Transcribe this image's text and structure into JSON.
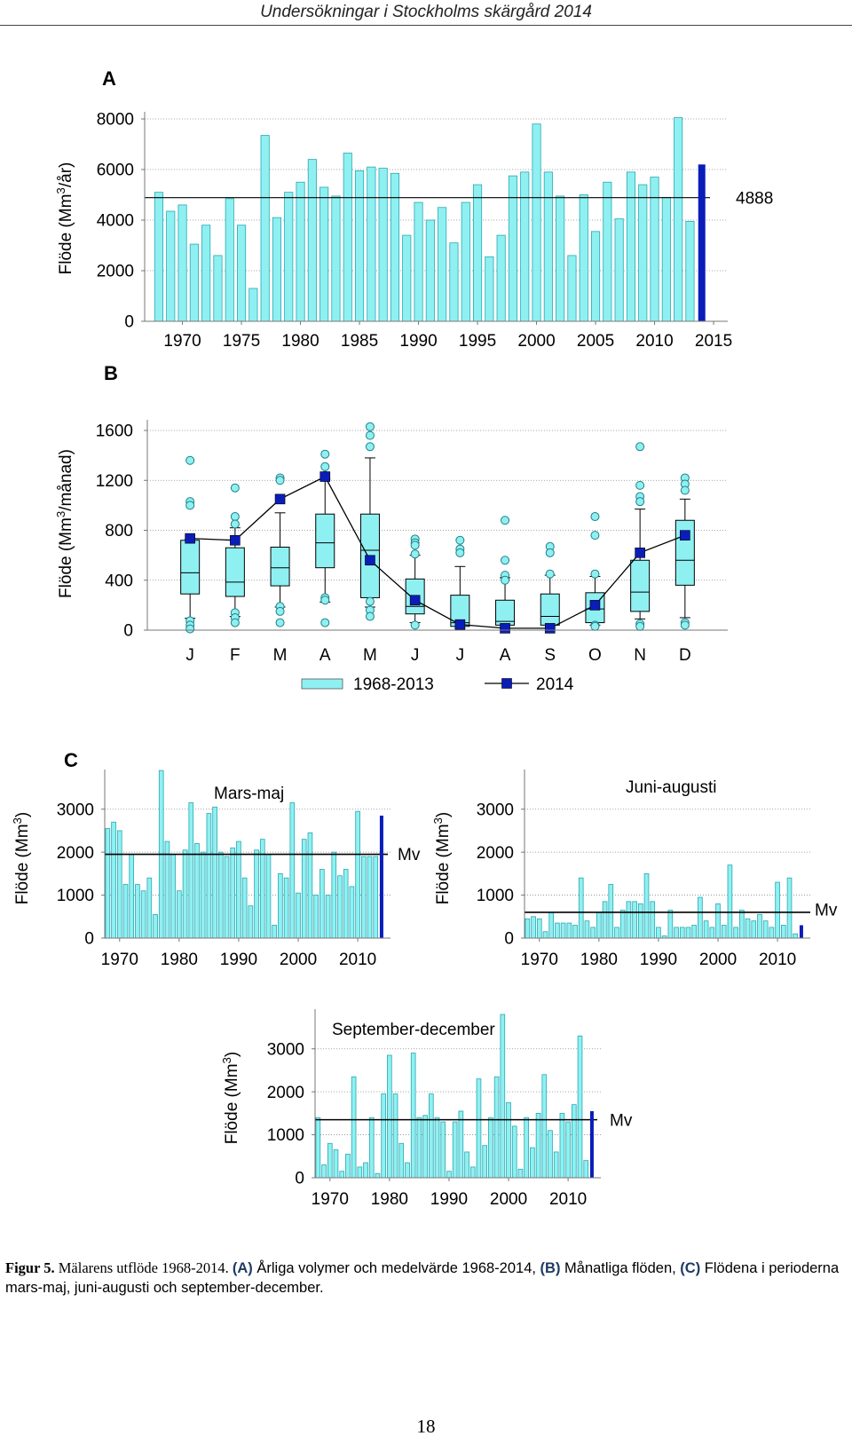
{
  "header": {
    "title": "Undersökningar i Stockholms skärgård 2014"
  },
  "colors": {
    "bar": "#8ff0f2",
    "bar_stroke": "#2aa8b0",
    "highlight": "#0a1db8",
    "mean_line": "#000000",
    "grid": "#8a8a8a"
  },
  "panels": {
    "a": "A",
    "b": "B",
    "c": "C"
  },
  "caption": {
    "figure_label": "Figur 5.",
    "figure_text": " Mälarens utflöde 1968-2014. ",
    "a_label": "(A)",
    "a_text": " Årliga volymer och medelvärde 1968-2014, ",
    "b_label": "(B)",
    "b_text": " Månatliga flöden, ",
    "c_label": "(C)",
    "c_text": " Flödena i perioderna mars-maj, juni-augusti och september-december."
  },
  "page_number": "18",
  "chart_data": [
    {
      "id": "A",
      "type": "bar",
      "ylabel_main": "Flöde (Mm",
      "ylabel_sup": "3",
      "ylabel_tail": "/år)",
      "ylim": [
        0,
        8000
      ],
      "yticks": [
        0,
        2000,
        4000,
        6000,
        8000
      ],
      "xlim": [
        1966.8,
        2016.2
      ],
      "xticks": [
        1970,
        1975,
        1980,
        1985,
        1990,
        1995,
        2000,
        2005,
        2010,
        2015
      ],
      "years": [
        1968,
        1969,
        1970,
        1971,
        1972,
        1973,
        1974,
        1975,
        1976,
        1977,
        1978,
        1979,
        1980,
        1981,
        1982,
        1983,
        1984,
        1985,
        1986,
        1987,
        1988,
        1989,
        1990,
        1991,
        1992,
        1993,
        1994,
        1995,
        1996,
        1997,
        1998,
        1999,
        2000,
        2001,
        2002,
        2003,
        2004,
        2005,
        2006,
        2007,
        2008,
        2009,
        2010,
        2011,
        2012,
        2013
      ],
      "values": [
        5100,
        4350,
        4600,
        3050,
        3800,
        2600,
        4850,
        3800,
        1300,
        7350,
        4100,
        5100,
        5500,
        6400,
        5300,
        4950,
        6650,
        5950,
        6100,
        6050,
        5850,
        3400,
        4700,
        4000,
        4500,
        3100,
        4700,
        5400,
        2550,
        3400,
        5750,
        5900,
        7800,
        5900,
        4950,
        2600,
        5000,
        3550,
        5500,
        4050,
        5900,
        5400,
        5700,
        4900,
        8050,
        3950
      ],
      "highlight_year": 2014,
      "highlight_value": 6200,
      "mean": 4888,
      "mean_label": "4888"
    },
    {
      "id": "B",
      "type": "box",
      "ylabel_main": "Flöde (Mm",
      "ylabel_sup": "3",
      "ylabel_tail": "/månad)",
      "ylim": [
        0,
        1600
      ],
      "yticks": [
        0,
        400,
        800,
        1200,
        1600
      ],
      "months": [
        "J",
        "F",
        "M",
        "A",
        "M",
        "J",
        "J",
        "A",
        "S",
        "O",
        "N",
        "D"
      ],
      "boxes": [
        {
          "wlo": 95,
          "q1": 290,
          "med": 460,
          "q3": 720,
          "whi": 730,
          "out": [
            1360,
            1030,
            1000,
            75,
            40,
            10
          ]
        },
        {
          "wlo": 110,
          "q1": 270,
          "med": 385,
          "q3": 660,
          "whi": 820,
          "out": [
            1140,
            910,
            850,
            140,
            100,
            60
          ]
        },
        {
          "wlo": 185,
          "q1": 355,
          "med": 500,
          "q3": 665,
          "whi": 940,
          "out": [
            1220,
            1200,
            190,
            150,
            60
          ]
        },
        {
          "wlo": 225,
          "q1": 500,
          "med": 700,
          "q3": 930,
          "whi": 1210,
          "out": [
            1410,
            1310,
            1240,
            260,
            240,
            60
          ]
        },
        {
          "wlo": 185,
          "q1": 260,
          "med": 640,
          "q3": 930,
          "whi": 1380,
          "out": [
            1630,
            1560,
            1470,
            230,
            160,
            110
          ]
        },
        {
          "wlo": 60,
          "q1": 130,
          "med": 190,
          "q3": 410,
          "whi": 600,
          "out": [
            730,
            700,
            680,
            610,
            40
          ]
        },
        {
          "wlo": 15,
          "q1": 30,
          "med": 60,
          "q3": 280,
          "whi": 510,
          "out": [
            720,
            650,
            620
          ]
        },
        {
          "wlo": 15,
          "q1": 40,
          "med": 70,
          "q3": 240,
          "whi": 420,
          "out": [
            880,
            560,
            440,
            400
          ]
        },
        {
          "wlo": 15,
          "q1": 40,
          "med": 110,
          "q3": 290,
          "whi": 440,
          "out": [
            670,
            620,
            450
          ]
        },
        {
          "wlo": 40,
          "q1": 60,
          "med": 170,
          "q3": 300,
          "whi": 430,
          "out": [
            910,
            760,
            450,
            40,
            30
          ]
        },
        {
          "wlo": 90,
          "q1": 150,
          "med": 305,
          "q3": 560,
          "whi": 970,
          "out": [
            1470,
            1160,
            1070,
            1030,
            50,
            30
          ]
        },
        {
          "wlo": 100,
          "q1": 360,
          "med": 560,
          "q3": 880,
          "whi": 1050,
          "out": [
            1220,
            1170,
            1120,
            60,
            40
          ]
        }
      ],
      "line_2014": [
        735,
        720,
        1050,
        1230,
        560,
        240,
        45,
        15,
        15,
        200,
        620,
        760
      ],
      "legend": [
        "1968-2013",
        "2014"
      ]
    },
    {
      "id": "C1",
      "type": "bar",
      "title": "Mars-maj",
      "ylabel_main": "Flöde (Mm",
      "ylabel_sup": "3",
      "ylabel_tail": ")",
      "ylim": [
        0,
        3800
      ],
      "yticks": [
        0,
        1000,
        2000,
        3000
      ],
      "xlim": [
        1967.5,
        2015.5
      ],
      "xticks": [
        1970,
        1980,
        1990,
        2000,
        2010
      ],
      "years": [
        1968,
        1969,
        1970,
        1971,
        1972,
        1973,
        1974,
        1975,
        1976,
        1977,
        1978,
        1979,
        1980,
        1981,
        1982,
        1983,
        1984,
        1985,
        1986,
        1987,
        1988,
        1989,
        1990,
        1991,
        1992,
        1993,
        1994,
        1995,
        1996,
        1997,
        1998,
        1999,
        2000,
        2001,
        2002,
        2003,
        2004,
        2005,
        2006,
        2007,
        2008,
        2009,
        2010,
        2011,
        2012,
        2013
      ],
      "values": [
        2550,
        2700,
        2500,
        1250,
        1950,
        1250,
        1100,
        1400,
        550,
        3900,
        2250,
        1950,
        1100,
        2050,
        3150,
        2200,
        2000,
        2900,
        3050,
        2000,
        1900,
        2100,
        2250,
        1400,
        750,
        2050,
        2300,
        1950,
        300,
        1500,
        1400,
        3150,
        1050,
        2300,
        2450,
        1000,
        1600,
        1000,
        2000,
        1450,
        1600,
        1200,
        2950,
        1900,
        1900,
        1900
      ],
      "highlight_year": 2014,
      "highlight_value": 2850,
      "mean": 1950,
      "mean_label": "Mv"
    },
    {
      "id": "C2",
      "type": "bar",
      "title": "Juni-augusti",
      "ylabel_main": "Flöde (Mm",
      "ylabel_sup": "3",
      "ylabel_tail": ")",
      "ylim": [
        0,
        3800
      ],
      "yticks": [
        0,
        1000,
        2000,
        3000
      ],
      "xlim": [
        1967.5,
        2015.5
      ],
      "xticks": [
        1970,
        1980,
        1990,
        2000,
        2010
      ],
      "years": [
        1968,
        1969,
        1970,
        1971,
        1972,
        1973,
        1974,
        1975,
        1976,
        1977,
        1978,
        1979,
        1980,
        1981,
        1982,
        1983,
        1984,
        1985,
        1986,
        1987,
        1988,
        1989,
        1990,
        1991,
        1992,
        1993,
        1994,
        1995,
        1996,
        1997,
        1998,
        1999,
        2000,
        2001,
        2002,
        2003,
        2004,
        2005,
        2006,
        2007,
        2008,
        2009,
        2010,
        2011,
        2012,
        2013
      ],
      "values": [
        450,
        500,
        450,
        150,
        600,
        350,
        350,
        350,
        300,
        1400,
        400,
        250,
        600,
        850,
        1250,
        250,
        650,
        850,
        850,
        800,
        1500,
        850,
        250,
        50,
        650,
        250,
        250,
        250,
        300,
        950,
        400,
        250,
        800,
        300,
        1700,
        250,
        650,
        450,
        400,
        550,
        400,
        250,
        1300,
        300,
        1400,
        100
      ],
      "highlight_year": 2014,
      "highlight_value": 300,
      "mean": 600,
      "mean_label": "Mv"
    },
    {
      "id": "C3",
      "type": "bar",
      "title": "September-december",
      "ylabel_main": "Flöde (Mm",
      "ylabel_sup": "3",
      "ylabel_tail": ")",
      "ylim": [
        0,
        3800
      ],
      "yticks": [
        0,
        1000,
        2000,
        3000
      ],
      "xlim": [
        1967.5,
        2015.5
      ],
      "xticks": [
        1970,
        1980,
        1990,
        2000,
        2010
      ],
      "years": [
        1968,
        1969,
        1970,
        1971,
        1972,
        1973,
        1974,
        1975,
        1976,
        1977,
        1978,
        1979,
        1980,
        1981,
        1982,
        1983,
        1984,
        1985,
        1986,
        1987,
        1988,
        1989,
        1990,
        1991,
        1992,
        1993,
        1994,
        1995,
        1996,
        1997,
        1998,
        1999,
        2000,
        2001,
        2002,
        2003,
        2004,
        2005,
        2006,
        2007,
        2008,
        2009,
        2010,
        2011,
        2012,
        2013
      ],
      "values": [
        1400,
        300,
        800,
        650,
        150,
        550,
        2350,
        250,
        350,
        1400,
        100,
        1950,
        2850,
        1950,
        800,
        350,
        2900,
        1400,
        1450,
        1950,
        1400,
        1300,
        150,
        1300,
        1550,
        600,
        250,
        2300,
        750,
        1400,
        2350,
        3800,
        1750,
        1200,
        200,
        1400,
        700,
        1500,
        2400,
        1100,
        600,
        1500,
        1300,
        1700,
        3300,
        400
      ],
      "highlight_year": 2014,
      "highlight_value": 1550,
      "mean": 1350,
      "mean_label": "Mv"
    }
  ]
}
